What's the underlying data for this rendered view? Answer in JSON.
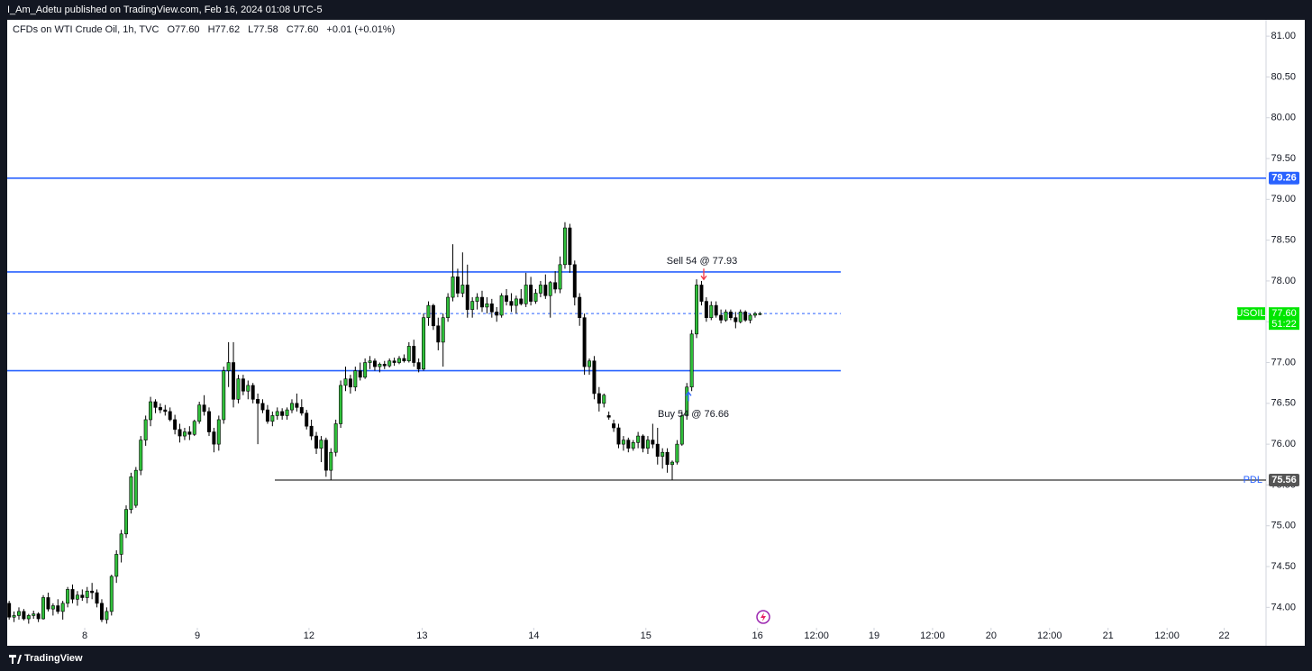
{
  "header": {
    "text": "I_Am_Adetu published on TradingView.com, Feb 16, 2024 01:08 UTC-5"
  },
  "footer": {
    "brand": "TradingView"
  },
  "chart_data": {
    "type": "candlestick",
    "title": "CFDs on WTI Crude Oil, 1h, TVC",
    "legend_values": [
      "O77.60",
      "H77.62",
      "L77.58",
      "C77.60",
      "+0.01 (+0.01%)"
    ],
    "up_color": "#2fbf3a",
    "down_color": "#000000",
    "ylim": [
      73.75,
      81.2
    ],
    "yticks": [
      {
        "value": 74,
        "label": "74.00"
      },
      {
        "value": 74.5,
        "label": "74.50"
      },
      {
        "value": 75,
        "label": "75.00"
      },
      {
        "value": 75.5,
        "label": "75.50"
      },
      {
        "value": 76,
        "label": "76.00"
      },
      {
        "value": 76.5,
        "label": "76.50"
      },
      {
        "value": 77,
        "label": "77.00"
      },
      {
        "value": 77.5,
        "label": "77.50"
      },
      {
        "value": 78,
        "label": "78.00"
      },
      {
        "value": 78.5,
        "label": "78.50"
      },
      {
        "value": 79,
        "label": "79.00"
      },
      {
        "value": 79.5,
        "label": "79.50"
      },
      {
        "value": 80,
        "label": "80.00"
      },
      {
        "value": 80.5,
        "label": "80.50"
      },
      {
        "value": 81,
        "label": "81.00"
      }
    ],
    "xlim": [
      -0.4,
      257.8
    ],
    "xticks": [
      {
        "value": 15.5,
        "label": "8"
      },
      {
        "value": 38.6,
        "label": "9"
      },
      {
        "value": 61.5,
        "label": "12"
      },
      {
        "value": 84.7,
        "label": "13"
      },
      {
        "value": 107.6,
        "label": "14"
      },
      {
        "value": 130.6,
        "label": "15"
      },
      {
        "value": 153.5,
        "label": "16"
      },
      {
        "value": 165.6,
        "label": "12:00"
      },
      {
        "value": 177.4,
        "label": "19"
      },
      {
        "value": 189.4,
        "label": "12:00"
      },
      {
        "value": 201.4,
        "label": "20"
      },
      {
        "value": 213.4,
        "label": "12:00"
      },
      {
        "value": 225.4,
        "label": "21"
      },
      {
        "value": 237.5,
        "label": "12:00"
      },
      {
        "value": 249.2,
        "label": "22"
      }
    ],
    "levels": [
      {
        "value": 79.26,
        "color": "#2962ff"
      },
      {
        "value": 78.11,
        "color": "#2962ff"
      },
      {
        "value": 76.9,
        "color": "#2962ff"
      },
      {
        "value": 75.56,
        "color": "#555555",
        "name": "PDL"
      }
    ],
    "last_price": {
      "value": 77.6,
      "label": "77.60",
      "symbol": "USOIL",
      "countdown": "51:22",
      "color": "#00e600"
    },
    "annotations": [
      {
        "text": "Sell 54 @ 77.93",
        "value": 77.93,
        "color": "#f23645"
      },
      {
        "text": "Buy 54 @ 76.66",
        "value": 76.66,
        "color": "#2962ff"
      }
    ],
    "candles": [
      [
        74.05,
        74.08,
        73.85,
        73.88
      ],
      [
        73.88,
        73.95,
        73.82,
        73.9
      ],
      [
        73.9,
        74.0,
        73.85,
        73.95
      ],
      [
        73.95,
        73.98,
        73.84,
        73.86
      ],
      [
        73.86,
        73.92,
        73.8,
        73.9
      ],
      [
        73.9,
        73.96,
        73.86,
        73.92
      ],
      [
        73.92,
        73.94,
        73.82,
        73.86
      ],
      [
        73.86,
        74.15,
        73.85,
        74.12
      ],
      [
        74.12,
        74.18,
        73.95,
        73.98
      ],
      [
        73.98,
        74.05,
        73.9,
        74.02
      ],
      [
        74.02,
        74.1,
        73.92,
        73.95
      ],
      [
        73.95,
        74.08,
        73.85,
        74.05
      ],
      [
        74.05,
        74.25,
        74.0,
        74.22
      ],
      [
        74.22,
        74.28,
        74.05,
        74.1
      ],
      [
        74.1,
        74.2,
        74.02,
        74.15
      ],
      [
        74.15,
        74.22,
        74.08,
        74.12
      ],
      [
        74.12,
        74.25,
        74.05,
        74.2
      ],
      [
        74.2,
        74.3,
        74.1,
        74.18
      ],
      [
        74.18,
        74.22,
        74.0,
        74.05
      ],
      [
        74.05,
        74.1,
        73.82,
        73.85
      ],
      [
        73.85,
        74.0,
        73.8,
        73.95
      ],
      [
        73.95,
        74.4,
        73.9,
        74.38
      ],
      [
        74.38,
        74.7,
        74.3,
        74.65
      ],
      [
        74.65,
        74.95,
        74.55,
        74.9
      ],
      [
        74.9,
        75.25,
        74.85,
        75.2
      ],
      [
        75.2,
        75.65,
        75.15,
        75.6
      ],
      [
        75.25,
        75.72,
        75.22,
        75.68
      ],
      [
        75.68,
        76.1,
        75.62,
        76.05
      ],
      [
        76.05,
        76.35,
        75.98,
        76.3
      ],
      [
        76.3,
        76.58,
        76.22,
        76.52
      ],
      [
        76.52,
        76.55,
        76.38,
        76.45
      ],
      [
        76.45,
        76.5,
        76.38,
        76.42
      ],
      [
        76.42,
        76.48,
        76.35,
        76.4
      ],
      [
        76.4,
        76.45,
        76.28,
        76.3
      ],
      [
        76.3,
        76.36,
        76.12,
        76.18
      ],
      [
        76.18,
        76.25,
        76.02,
        76.1
      ],
      [
        76.1,
        76.2,
        76.05,
        76.15
      ],
      [
        76.15,
        76.22,
        76.05,
        76.12
      ],
      [
        76.12,
        76.3,
        76.1,
        76.28
      ],
      [
        76.28,
        76.52,
        76.25,
        76.48
      ],
      [
        76.48,
        76.6,
        76.35,
        76.4
      ],
      [
        76.4,
        76.45,
        76.1,
        76.15
      ],
      [
        76.15,
        76.2,
        75.9,
        76.0
      ],
      [
        76.0,
        76.35,
        75.92,
        76.3
      ],
      [
        76.3,
        76.95,
        76.25,
        76.9
      ],
      [
        76.9,
        77.25,
        76.7,
        77.0
      ],
      [
        77.0,
        77.25,
        76.45,
        76.55
      ],
      [
        76.55,
        76.85,
        76.5,
        76.8
      ],
      [
        76.8,
        76.85,
        76.6,
        76.65
      ],
      [
        76.65,
        76.78,
        76.55,
        76.72
      ],
      [
        76.72,
        76.75,
        76.5,
        76.55
      ],
      [
        76.55,
        76.62,
        76.0,
        76.5
      ],
      [
        76.5,
        76.55,
        76.38,
        76.42
      ],
      [
        76.42,
        76.48,
        76.25,
        76.28
      ],
      [
        76.28,
        76.4,
        76.22,
        76.35
      ],
      [
        76.35,
        76.45,
        76.3,
        76.4
      ],
      [
        76.4,
        76.44,
        76.3,
        76.35
      ],
      [
        76.35,
        76.45,
        76.3,
        76.42
      ],
      [
        76.42,
        76.55,
        76.38,
        76.5
      ],
      [
        76.5,
        76.62,
        76.4,
        76.45
      ],
      [
        76.45,
        76.55,
        76.35,
        76.38
      ],
      [
        76.38,
        76.42,
        76.18,
        76.22
      ],
      [
        76.22,
        76.3,
        76.05,
        76.1
      ],
      [
        76.1,
        76.15,
        75.88,
        75.95
      ],
      [
        75.95,
        76.1,
        75.78,
        76.05
      ],
      [
        76.05,
        76.08,
        75.6,
        75.68
      ],
      [
        75.68,
        75.95,
        75.56,
        75.9
      ],
      [
        75.9,
        76.3,
        75.85,
        76.25
      ],
      [
        76.25,
        76.78,
        76.2,
        76.72
      ],
      [
        76.72,
        76.95,
        76.65,
        76.8
      ],
      [
        76.8,
        76.85,
        76.62,
        76.7
      ],
      [
        76.7,
        76.95,
        76.65,
        76.9
      ],
      [
        76.9,
        77.0,
        76.78,
        76.82
      ],
      [
        76.82,
        77.05,
        76.8,
        77.0
      ],
      [
        77.0,
        77.08,
        76.92,
        77.02
      ],
      [
        77.02,
        77.05,
        76.9,
        76.95
      ],
      [
        76.95,
        77.0,
        76.88,
        76.98
      ],
      [
        76.98,
        77.02,
        76.92,
        76.96
      ],
      [
        76.96,
        77.05,
        76.94,
        77.02
      ],
      [
        77.02,
        77.06,
        76.96,
        77.0
      ],
      [
        77.0,
        77.08,
        76.98,
        77.05
      ],
      [
        77.05,
        77.1,
        77.0,
        77.02
      ],
      [
        77.02,
        77.25,
        77.0,
        77.2
      ],
      [
        77.2,
        77.28,
        76.95,
        77.0
      ],
      [
        77.0,
        77.05,
        76.88,
        76.92
      ],
      [
        76.92,
        77.6,
        76.9,
        77.55
      ],
      [
        77.55,
        77.75,
        77.45,
        77.7
      ],
      [
        77.7,
        77.72,
        77.4,
        77.45
      ],
      [
        77.45,
        77.55,
        77.15,
        77.25
      ],
      [
        77.25,
        77.6,
        76.95,
        77.55
      ],
      [
        77.55,
        77.85,
        77.5,
        77.8
      ],
      [
        77.8,
        78.45,
        77.75,
        78.05
      ],
      [
        78.05,
        78.15,
        77.8,
        77.85
      ],
      [
        77.85,
        78.35,
        77.8,
        77.95
      ],
      [
        77.95,
        78.2,
        77.55,
        77.65
      ],
      [
        77.65,
        77.8,
        77.55,
        77.75
      ],
      [
        77.75,
        77.85,
        77.65,
        77.8
      ],
      [
        77.8,
        77.88,
        77.62,
        77.68
      ],
      [
        77.68,
        77.8,
        77.6,
        77.72
      ],
      [
        77.72,
        77.78,
        77.55,
        77.62
      ],
      [
        77.62,
        77.68,
        77.5,
        77.58
      ],
      [
        77.58,
        77.85,
        77.55,
        77.82
      ],
      [
        77.82,
        77.9,
        77.7,
        77.75
      ],
      [
        77.75,
        77.85,
        77.62,
        77.7
      ],
      [
        77.7,
        77.82,
        77.6,
        77.78
      ],
      [
        77.78,
        77.9,
        77.7,
        77.72
      ],
      [
        77.72,
        78.1,
        77.68,
        77.95
      ],
      [
        77.95,
        78.05,
        77.7,
        77.75
      ],
      [
        77.75,
        77.9,
        77.72,
        77.85
      ],
      [
        77.85,
        78.0,
        77.8,
        77.95
      ],
      [
        77.95,
        78.08,
        77.78,
        77.82
      ],
      [
        77.82,
        78.0,
        77.55,
        77.98
      ],
      [
        77.98,
        78.12,
        77.85,
        77.9
      ],
      [
        77.9,
        78.3,
        77.85,
        78.2
      ],
      [
        78.2,
        78.72,
        78.15,
        78.65
      ],
      [
        78.65,
        78.7,
        78.1,
        78.2
      ],
      [
        78.2,
        78.25,
        77.7,
        77.8
      ],
      [
        77.8,
        77.85,
        77.45,
        77.55
      ],
      [
        77.55,
        77.6,
        76.85,
        76.95
      ],
      [
        76.95,
        77.05,
        76.85,
        77.02
      ],
      [
        77.02,
        77.08,
        76.55,
        76.62
      ],
      [
        76.62,
        76.7,
        76.4,
        76.5
      ],
      [
        76.5,
        76.62,
        76.45,
        76.6
      ],
      [
        76.35,
        76.4,
        76.3,
        76.33
      ],
      [
        76.25,
        76.3,
        76.15,
        76.2
      ],
      [
        76.2,
        76.25,
        75.95,
        76.0
      ],
      [
        76.0,
        76.1,
        75.92,
        76.05
      ],
      [
        76.05,
        76.08,
        75.9,
        75.95
      ],
      [
        75.95,
        76.05,
        75.92,
        76.02
      ],
      [
        76.02,
        76.15,
        75.95,
        76.1
      ],
      [
        76.1,
        76.12,
        75.9,
        75.95
      ],
      [
        75.95,
        76.1,
        75.88,
        76.05
      ],
      [
        76.05,
        76.25,
        75.95,
        76.0
      ],
      [
        76.0,
        76.2,
        75.75,
        75.85
      ],
      [
        75.85,
        75.95,
        75.7,
        75.9
      ],
      [
        75.9,
        75.95,
        75.65,
        75.75
      ],
      [
        75.75,
        75.8,
        75.56,
        75.78
      ],
      [
        75.78,
        76.05,
        75.75,
        76.0
      ],
      [
        76.0,
        76.4,
        75.98,
        76.35
      ],
      [
        76.35,
        76.75,
        76.3,
        76.7
      ],
      [
        76.7,
        77.4,
        76.65,
        77.35
      ],
      [
        77.35,
        78.02,
        77.3,
        77.95
      ],
      [
        77.95,
        78.0,
        77.7,
        77.75
      ],
      [
        77.75,
        77.8,
        77.5,
        77.55
      ],
      [
        77.55,
        77.75,
        77.52,
        77.7
      ],
      [
        77.7,
        77.75,
        77.55,
        77.58
      ],
      [
        77.58,
        77.65,
        77.48,
        77.52
      ],
      [
        77.52,
        77.65,
        77.5,
        77.62
      ],
      [
        77.62,
        77.65,
        77.52,
        77.55
      ],
      [
        77.55,
        77.62,
        77.42,
        77.5
      ],
      [
        77.5,
        77.65,
        77.48,
        77.62
      ],
      [
        77.62,
        77.64,
        77.5,
        77.52
      ],
      [
        77.52,
        77.6,
        77.48,
        77.58
      ],
      [
        77.58,
        77.62,
        77.55,
        77.6
      ],
      [
        77.6,
        77.62,
        77.58,
        77.6
      ]
    ]
  }
}
